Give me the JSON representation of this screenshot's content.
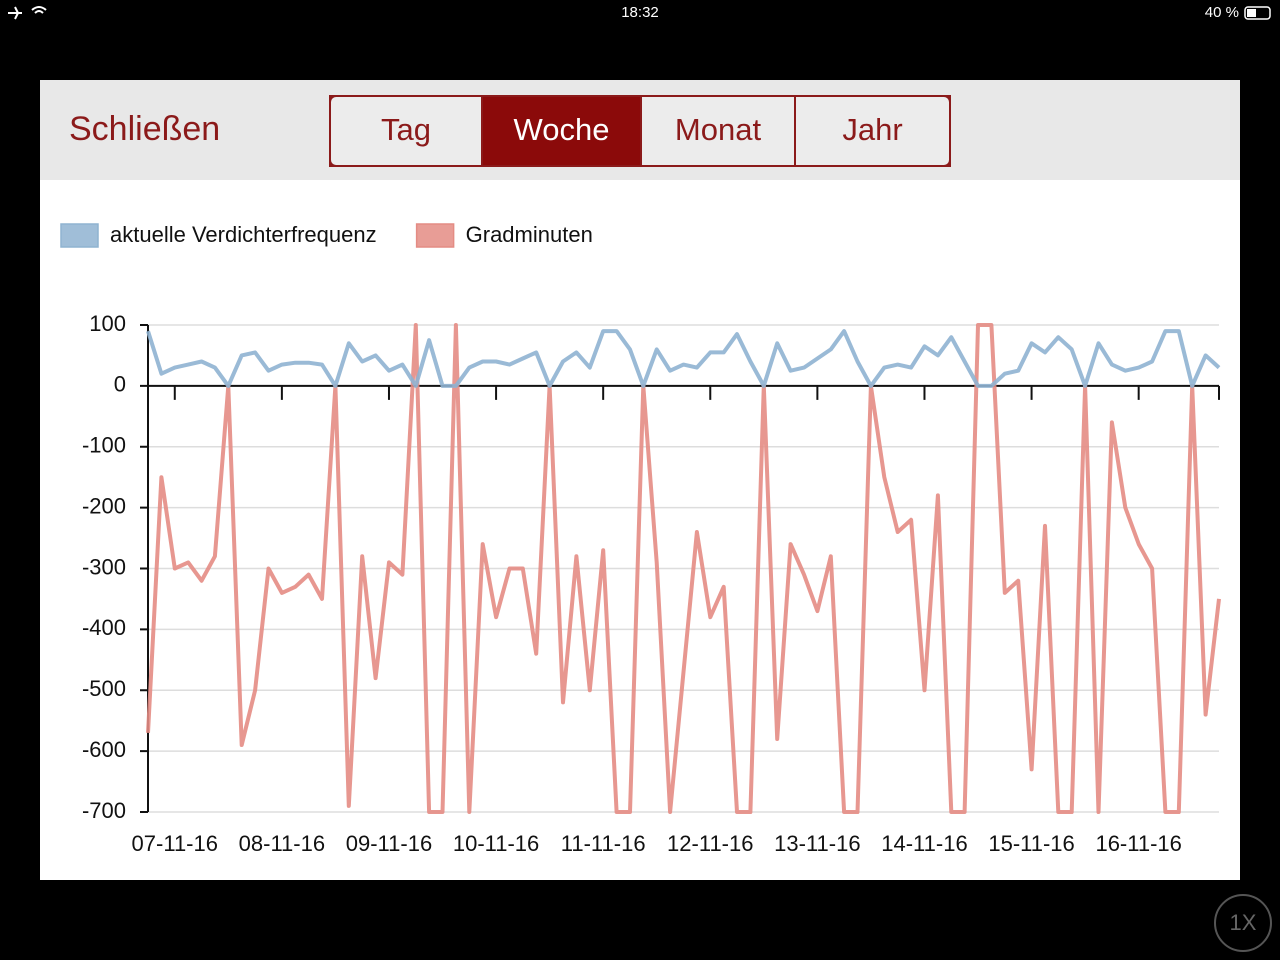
{
  "status_bar": {
    "time": "18:32",
    "battery": "40 %"
  },
  "toolbar": {
    "close": "Schließen",
    "segments": [
      "Tag",
      "Woche",
      "Monat",
      "Jahr"
    ],
    "selected": 1
  },
  "zoom": "1X",
  "chart_data": {
    "type": "line",
    "categories": [
      null,
      null,
      "07-11-16",
      null,
      null,
      null,
      null,
      null,
      null,
      null,
      "08-11-16",
      null,
      null,
      null,
      null,
      null,
      null,
      null,
      "09-11-16",
      null,
      null,
      null,
      null,
      null,
      null,
      null,
      "10-11-16",
      null,
      null,
      null,
      null,
      null,
      null,
      null,
      "11-11-16",
      null,
      null,
      null,
      null,
      null,
      null,
      null,
      "12-11-16",
      null,
      null,
      null,
      null,
      null,
      null,
      null,
      "13-11-16",
      null,
      null,
      null,
      null,
      null,
      null,
      null,
      "14-11-16",
      null,
      null,
      null,
      null,
      null,
      null,
      null,
      "15-11-16",
      null,
      null,
      null,
      null,
      null,
      null,
      null,
      "16-11-16",
      null,
      null,
      null,
      null,
      null,
      null
    ],
    "series": [
      {
        "name": "aktuelle Verdichterfrequenz",
        "color": "#8fb3d1",
        "values": [
          90,
          20,
          30,
          35,
          40,
          30,
          0,
          50,
          55,
          25,
          35,
          38,
          38,
          35,
          0,
          70,
          40,
          50,
          25,
          35,
          0,
          75,
          0,
          0,
          30,
          40,
          40,
          35,
          45,
          55,
          0,
          40,
          55,
          30,
          90,
          90,
          60,
          0,
          60,
          25,
          35,
          30,
          55,
          55,
          85,
          40,
          0,
          70,
          25,
          30,
          45,
          60,
          90,
          40,
          0,
          30,
          35,
          30,
          65,
          50,
          80,
          40,
          0,
          0,
          20,
          25,
          70,
          55,
          80,
          60,
          0,
          70,
          35,
          25,
          30,
          40,
          90,
          90,
          0,
          50,
          30
        ]
      },
      {
        "name": "Gradminuten",
        "color": "#e48c84",
        "values": [
          -570,
          -150,
          -300,
          -290,
          -320,
          -280,
          0,
          -590,
          -500,
          -300,
          -340,
          -330,
          -310,
          -350,
          0,
          -690,
          -280,
          -480,
          -290,
          -310,
          100,
          -700,
          -700,
          100,
          -700,
          -260,
          -380,
          -300,
          -300,
          -440,
          0,
          -520,
          -280,
          -500,
          -270,
          -700,
          -700,
          0,
          -290,
          -700,
          -470,
          -240,
          -380,
          -330,
          -700,
          -700,
          0,
          -580,
          -260,
          -310,
          -370,
          -280,
          -700,
          -700,
          0,
          -150,
          -240,
          -220,
          -500,
          -180,
          -700,
          -700,
          100,
          100,
          -340,
          -320,
          -630,
          -230,
          -700,
          -700,
          0,
          -700,
          -60,
          -200,
          -260,
          -300,
          -700,
          -700,
          0,
          -540,
          -350
        ]
      }
    ],
    "ylim": [
      -700,
      100
    ],
    "yticks": [
      100,
      0,
      -100,
      -200,
      -300,
      -400,
      -500,
      -600,
      -700
    ],
    "grid": true,
    "legend": "top-left"
  }
}
